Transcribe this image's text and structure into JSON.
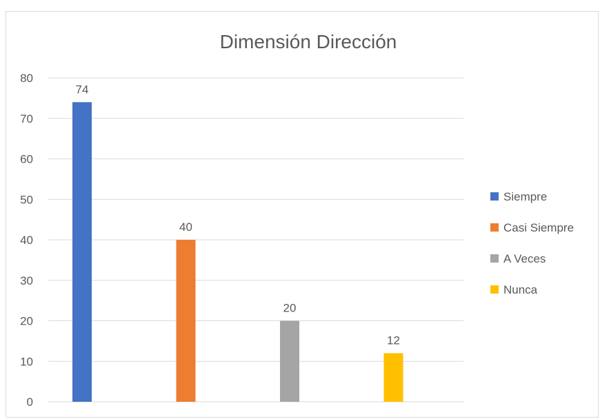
{
  "chart_data": {
    "type": "bar",
    "title": "Dimensión Dirección",
    "categories": [
      "Siempre",
      "Casi Siempre",
      "A Veces",
      "Nunca"
    ],
    "values": [
      74,
      40,
      20,
      12
    ],
    "colors": [
      "#4472c4",
      "#ed7d31",
      "#a5a5a5",
      "#ffc000"
    ],
    "data_labels": [
      "74",
      "40",
      "20",
      "12"
    ],
    "yticks": [
      "0",
      "10",
      "20",
      "30",
      "40",
      "50",
      "60",
      "70",
      "80"
    ],
    "ylim": [
      0,
      80
    ],
    "grid": true,
    "legend_position": "right",
    "legend": [
      "Siempre",
      "Casi Siempre",
      "A Veces",
      "Nunca"
    ]
  }
}
